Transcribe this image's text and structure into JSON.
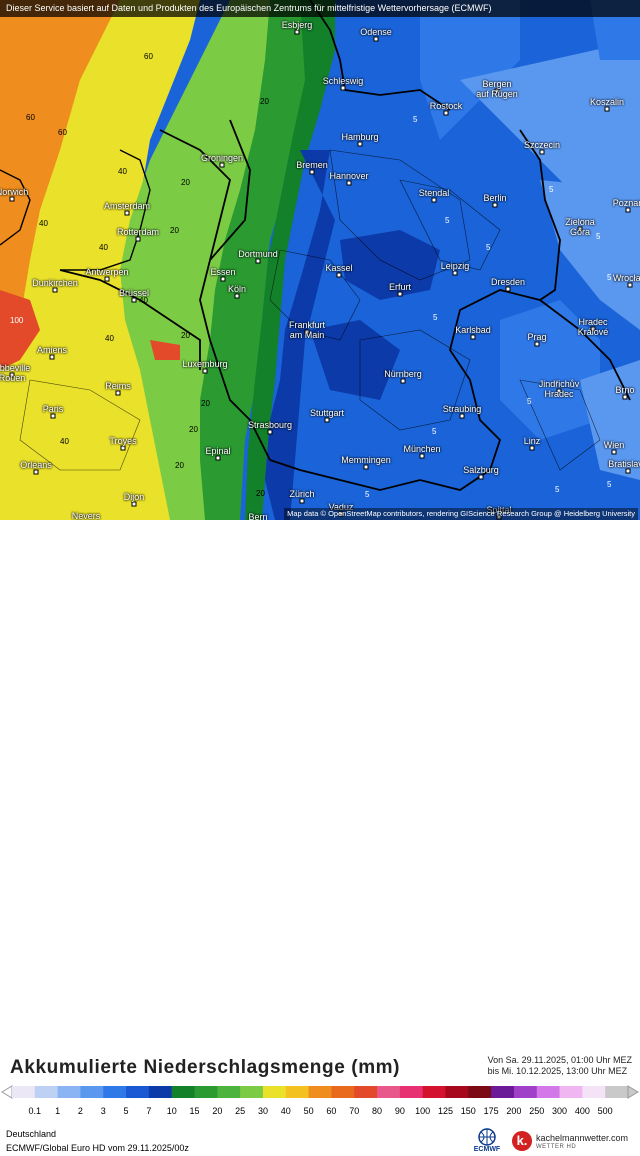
{
  "header_notice": "Dieser Service basiert auf Daten und Produkten des Europäischen Zentrums für mittelfristige Wettervorhersage (ECMWF)",
  "map_attribution": "Map data © OpenStreetMap contributors, rendering GIScience Research Group @ Heidelberg University",
  "title": "Akkumulierte Niederschlagsmenge (mm)",
  "period": {
    "from": "Von Sa. 29.11.2025, 01:00 Uhr MEZ",
    "to": "bis Mi. 10.12.2025, 13:00 Uhr MEZ"
  },
  "region": "Deutschland",
  "model_run": "ECMWF/Global Euro HD vom  29.11.2025/00z",
  "branding": {
    "ecmwf_logo": "ECMWF",
    "site_icon": "k.",
    "site_name": "kachelmannwetter.com",
    "site_sub": "WETTER HD"
  },
  "legend": {
    "ticks": [
      "0.1",
      "1",
      "2",
      "3",
      "5",
      "7",
      "10",
      "15",
      "20",
      "25",
      "30",
      "40",
      "50",
      "60",
      "70",
      "80",
      "90",
      "100",
      "125",
      "150",
      "175",
      "200",
      "250",
      "300",
      "400",
      "500"
    ],
    "colors": [
      "#ece7f6",
      "#bcd1f4",
      "#8ab4f4",
      "#5a97ef",
      "#2f78e8",
      "#1a58d4",
      "#0c3aa8",
      "#13802a",
      "#2a9a31",
      "#4cb33d",
      "#7ccb44",
      "#e9e12a",
      "#f3c120",
      "#ef8e1e",
      "#e96a1c",
      "#e24a2a",
      "#e8588a",
      "#e73072",
      "#d3122e",
      "#a8081c",
      "#7c0a16",
      "#6b1a98",
      "#a040c8",
      "#d278e8",
      "#efb6f2",
      "#f4e2f6",
      "#c9c9c9"
    ]
  },
  "cities": [
    {
      "name": "Esbjerg"
    },
    {
      "name": "Odense"
    },
    {
      "name": "Schleswig"
    },
    {
      "name": "Bergen\nauf Rügen"
    },
    {
      "name": "Rostock"
    },
    {
      "name": "Koszalin"
    },
    {
      "name": "Hamburg"
    },
    {
      "name": "Szczecin"
    },
    {
      "name": "Groningen"
    },
    {
      "name": "Bremen"
    },
    {
      "name": "Norwich"
    },
    {
      "name": "Amsterdam"
    },
    {
      "name": "Hannover"
    },
    {
      "name": "Stendal"
    },
    {
      "name": "Berlin"
    },
    {
      "name": "Poznań"
    },
    {
      "name": "Rotterdam"
    },
    {
      "name": "Dortmund"
    },
    {
      "name": "Zielona\nGóra"
    },
    {
      "name": "Antwerpen"
    },
    {
      "name": "Essen"
    },
    {
      "name": "Kassel"
    },
    {
      "name": "Leipzig"
    },
    {
      "name": "Dresden"
    },
    {
      "name": "Wrocław"
    },
    {
      "name": "Dunkirchen"
    },
    {
      "name": "Brüssel"
    },
    {
      "name": "Köln"
    },
    {
      "name": "Erfurt"
    },
    {
      "name": "Frankfurt\nam Main"
    },
    {
      "name": "Karlsbad"
    },
    {
      "name": "Prag"
    },
    {
      "name": "Hradec\nKrálové"
    },
    {
      "name": "Amiens"
    },
    {
      "name": "Luxemburg"
    },
    {
      "name": "Nürnberg"
    },
    {
      "name": "Abbeville\nRouen"
    },
    {
      "name": "Reims"
    },
    {
      "name": "Jindřichův\nHradec"
    },
    {
      "name": "Brno"
    },
    {
      "name": "Paris"
    },
    {
      "name": "Stuttgart"
    },
    {
      "name": "Straubing"
    },
    {
      "name": "Strasbourg"
    },
    {
      "name": "Troyes"
    },
    {
      "name": "Linz"
    },
    {
      "name": "Wien"
    },
    {
      "name": "Epinal"
    },
    {
      "name": "München"
    },
    {
      "name": "Orléans"
    },
    {
      "name": "Memmingen"
    },
    {
      "name": "Salzburg"
    },
    {
      "name": "Bratislava"
    },
    {
      "name": "Dijon"
    },
    {
      "name": "Zürich"
    },
    {
      "name": "Vaduz"
    },
    {
      "name": "Nevers"
    },
    {
      "name": "Bern"
    },
    {
      "name": "Spittal"
    }
  ],
  "isolines": [
    "60",
    "60",
    "60",
    "40",
    "40",
    "40",
    "40",
    "40",
    "40",
    "20",
    "20",
    "20",
    "20",
    "20",
    "20",
    "20",
    "20",
    "5",
    "5",
    "5",
    "5",
    "5",
    "5",
    "5",
    "5",
    "5",
    "5",
    "5",
    "5",
    "100"
  ]
}
